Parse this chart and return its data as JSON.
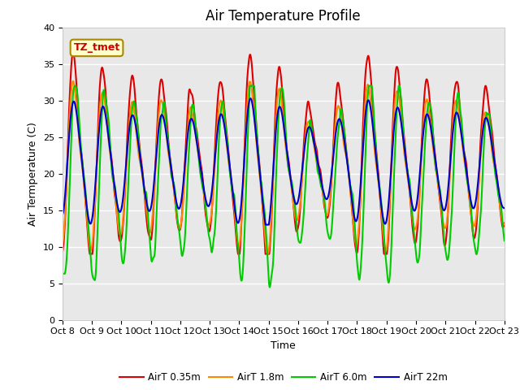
{
  "title": "Air Temperature Profile",
  "xlabel": "Time",
  "ylabel": "Air Termperature (C)",
  "ylim": [
    0,
    40
  ],
  "xlim": [
    0,
    360
  ],
  "x_tick_labels": [
    "Oct 8",
    "Oct 9",
    "Oct 10",
    "Oct 11",
    "Oct 12",
    "Oct 13",
    "Oct 14",
    "Oct 15",
    "Oct 16",
    "Oct 17",
    "Oct 18",
    "Oct 19",
    "Oct 20",
    "Oct 21",
    "Oct 22",
    "Oct 23"
  ],
  "series_colors": [
    "#dd0000",
    "#ff8800",
    "#00cc00",
    "#0000cc"
  ],
  "series_labels": [
    "AirT 0.35m",
    "AirT 1.8m",
    "AirT 6.0m",
    "AirT 22m"
  ],
  "series_linewidths": [
    1.5,
    1.5,
    1.5,
    1.5
  ],
  "bg_color": "#e8e8e8",
  "annotation_text": "TZ_tmet",
  "annotation_facecolor": "#ffffcc",
  "annotation_edgecolor": "#aa8800",
  "annotation_textcolor": "#cc0000",
  "title_fontsize": 12,
  "label_fontsize": 9,
  "tick_fontsize": 8
}
